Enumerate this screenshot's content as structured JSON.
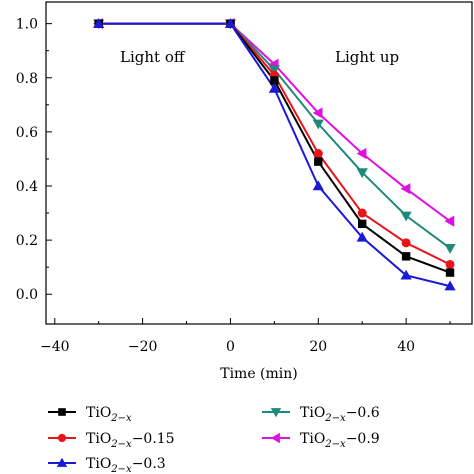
{
  "chart_data": {
    "type": "line",
    "xlabel": "Time (min)",
    "ylabel": "",
    "xlim": [
      -42,
      55
    ],
    "ylim": [
      -0.11,
      1.08
    ],
    "xticks": [
      -40,
      -20,
      0,
      20,
      40
    ],
    "yticks": [
      0.0,
      0.2,
      0.4,
      0.6,
      0.8,
      1.0
    ],
    "xtick_labels": [
      "−40",
      "−20",
      "0",
      "20",
      "40"
    ],
    "ytick_labels": [
      "0.0",
      "0.2",
      "0.4",
      "0.6",
      "0.8",
      "1.0"
    ],
    "x": [
      -30,
      0,
      10,
      20,
      30,
      40,
      50
    ],
    "annotations": [
      "Light off",
      "Light up"
    ],
    "legend_position": "bottom",
    "series": [
      {
        "name": "TiO2−x",
        "label_parts": {
          "base": "TiO",
          "sub": "2−x",
          "suffix": ""
        },
        "color": "#000000",
        "marker": "square",
        "values": [
          1.0,
          1.0,
          0.79,
          0.49,
          0.26,
          0.14,
          0.08
        ]
      },
      {
        "name": "TiO2−x−0.15",
        "label_parts": {
          "base": "TiO",
          "sub": "2−x",
          "suffix": "−0.15"
        },
        "color": "#e8141c",
        "marker": "circle",
        "values": [
          1.0,
          1.0,
          0.81,
          0.52,
          0.3,
          0.19,
          0.11
        ]
      },
      {
        "name": "TiO2−x−0.3",
        "label_parts": {
          "base": "TiO",
          "sub": "2−x",
          "suffix": "−0.3"
        },
        "color": "#1a1ad6",
        "marker": "triangle-up",
        "values": [
          1.0,
          1.0,
          0.76,
          0.4,
          0.21,
          0.07,
          0.03
        ]
      },
      {
        "name": "TiO2−x−0.6",
        "label_parts": {
          "base": "TiO",
          "sub": "2−x",
          "suffix": "−0.6"
        },
        "color": "#1f8a78",
        "marker": "triangle-down",
        "values": [
          1.0,
          1.0,
          0.83,
          0.63,
          0.45,
          0.29,
          0.17
        ]
      },
      {
        "name": "TiO2−x−0.9",
        "label_parts": {
          "base": "TiO",
          "sub": "2−x",
          "suffix": "−0.9"
        },
        "color": "#e010e0",
        "marker": "triangle-left",
        "values": [
          1.0,
          1.0,
          0.85,
          0.67,
          0.52,
          0.39,
          0.27
        ]
      }
    ]
  }
}
